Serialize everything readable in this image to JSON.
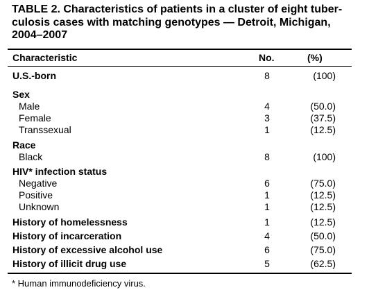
{
  "title_lines": [
    "TABLE 2. Characteristics of patients in a cluster of eight tuber-",
    "culosis cases with matching genotypes — Detroit, Michigan,",
    "2004–2007"
  ],
  "headers": {
    "characteristic": "Characteristic",
    "no": "No.",
    "pct": "(%)"
  },
  "rows": [
    {
      "label": "U.S.-born",
      "no": "8",
      "pct": "(100)"
    },
    {
      "label": "Sex",
      "no": "",
      "pct": ""
    },
    {
      "label": "Male",
      "no": "4",
      "pct": "(50.0)"
    },
    {
      "label": "Female",
      "no": "3",
      "pct": "(37.5)"
    },
    {
      "label": "Transsexual",
      "no": "1",
      "pct": "(12.5)"
    },
    {
      "label": "Race",
      "no": "",
      "pct": ""
    },
    {
      "label": "Black",
      "no": "8",
      "pct": "(100)"
    },
    {
      "label": "HIV* infection status",
      "no": "",
      "pct": ""
    },
    {
      "label": "Negative",
      "no": "6",
      "pct": "(75.0)"
    },
    {
      "label": "Positive",
      "no": "1",
      "pct": "(12.5)"
    },
    {
      "label": "Unknown",
      "no": "1",
      "pct": "(12.5)"
    },
    {
      "label": "History of homelessness",
      "no": "1",
      "pct": "(12.5)"
    },
    {
      "label": "History of incarceration",
      "no": "4",
      "pct": "(50.0)"
    },
    {
      "label": "History of excessive alcohol use",
      "no": "6",
      "pct": "(75.0)"
    },
    {
      "label": "History of illicit drug use",
      "no": "5",
      "pct": "(62.5)"
    }
  ],
  "footnote": "* Human immunodeficiency virus."
}
